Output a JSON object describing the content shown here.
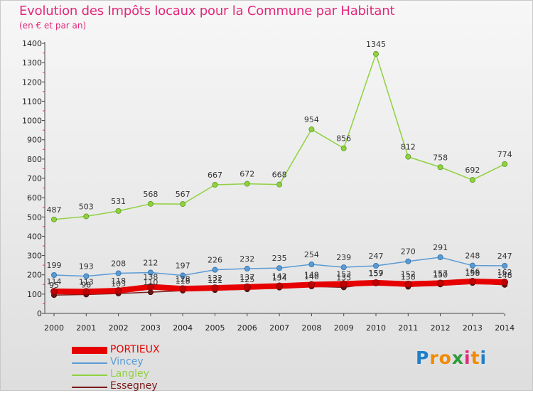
{
  "title": "Evolution des Impôts locaux pour la Commune par Habitant",
  "subtitle": "(en € et par an)",
  "logo": {
    "letters": [
      "P",
      "r",
      "o",
      "x",
      "i",
      "t",
      "i"
    ],
    "colors": [
      "#1f7fc9",
      "#f28a00",
      "#f28a00",
      "#2d9a3a",
      "#e4287b",
      "#f28a00",
      "#1f7fc9"
    ]
  },
  "chart_data": {
    "type": "line",
    "x": [
      2000,
      2001,
      2002,
      2003,
      2004,
      2005,
      2006,
      2007,
      2008,
      2009,
      2010,
      2011,
      2012,
      2013,
      2014
    ],
    "ylim": [
      0,
      1400
    ],
    "yticks": [
      0,
      100,
      200,
      300,
      400,
      500,
      600,
      700,
      800,
      900,
      1000,
      1100,
      1200,
      1300,
      1400
    ],
    "grid": false,
    "legend_position": "bottom-left",
    "series": [
      {
        "name": "Langley",
        "color": "#8fd13f",
        "values": [
          487,
          503,
          531,
          568,
          567,
          667,
          672,
          668,
          954,
          856,
          1345,
          812,
          758,
          692,
          774
        ],
        "labels": [
          "487",
          "503",
          "531",
          "568",
          "567",
          "667",
          "672",
          "668",
          "954",
          "856",
          "1345",
          "812",
          "758",
          "692",
          "774"
        ]
      },
      {
        "name": "Vincey",
        "color": "#5b9bd5",
        "values": [
          199,
          193,
          208,
          212,
          197,
          226,
          232,
          235,
          254,
          239,
          247,
          270,
          291,
          248,
          247
        ],
        "labels": [
          "199",
          "193",
          "208",
          "212",
          "197",
          "226",
          "232",
          "235",
          "254",
          "239",
          "247",
          "270",
          "291",
          "248",
          "247"
        ]
      },
      {
        "name": "Essegney",
        "color": "#7b1a1a",
        "values": [
          95,
          98,
          103,
          110,
          118,
          121,
          125,
          134,
          140,
          135,
          157,
          138,
          150,
          158,
          148
        ],
        "labels": [
          "95",
          "98",
          "103",
          "110",
          "118",
          "121",
          "125",
          "134",
          "140",
          "135",
          "157",
          "138",
          "150",
          "158",
          "148"
        ]
      },
      {
        "name": "PORTIEUX",
        "color": "#e60000",
        "values": [
          114,
          113,
          118,
          138,
          128,
          132,
          137,
          142,
          149,
          153,
          159,
          152,
          157,
          166,
          162
        ],
        "labels": [
          "114",
          "113",
          "118",
          "138",
          "128",
          "132",
          "137",
          "142",
          "149",
          "153",
          "159",
          "152",
          "157",
          "166",
          "162"
        ]
      }
    ],
    "legend": [
      {
        "name": "PORTIEUX",
        "color": "#e60000"
      },
      {
        "name": "Vincey",
        "color": "#5b9bd5"
      },
      {
        "name": "Langley",
        "color": "#8fd13f"
      },
      {
        "name": "Essegney",
        "color": "#7b1a1a"
      }
    ]
  }
}
